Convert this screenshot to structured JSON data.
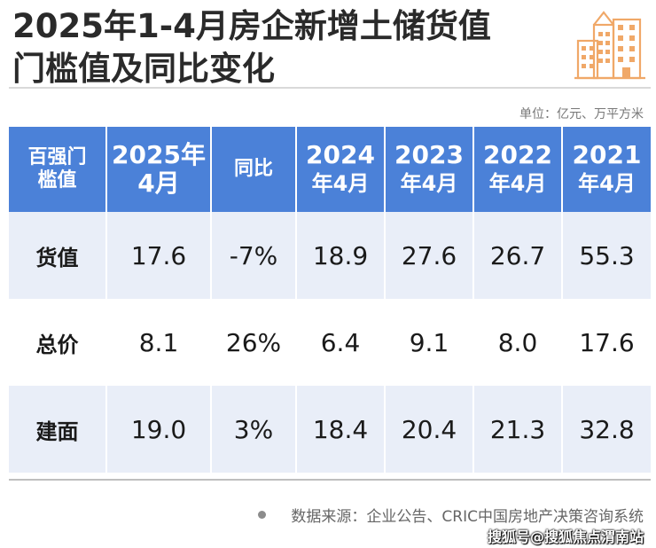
{
  "title": {
    "line1": "2025年1-4月房企新增土储货值",
    "line2": "门槛值及同比变化"
  },
  "logo": {
    "icon": "city-buildings-icon",
    "color": "#f0a868"
  },
  "unit_note": "单位：亿元、万平方米",
  "table": {
    "headers": [
      [
        "百强门",
        "槛值"
      ],
      [
        "2025年",
        "4月"
      ],
      [
        "同比"
      ],
      [
        "2024",
        "年4月"
      ],
      [
        "2023",
        "年4月"
      ],
      [
        "2022",
        "年4月"
      ],
      [
        "2021",
        "年4月"
      ]
    ],
    "rows": [
      {
        "label": "货值",
        "values": [
          "17.6",
          "-7%",
          "18.9",
          "27.6",
          "26.7",
          "55.3"
        ]
      },
      {
        "label": "总价",
        "values": [
          "8.1",
          "26%",
          "6.4",
          "9.1",
          "8.0",
          "17.6"
        ]
      },
      {
        "label": "建面",
        "values": [
          "19.0",
          "3%",
          "18.4",
          "20.4",
          "21.3",
          "32.8"
        ]
      }
    ]
  },
  "source": "数据来源：企业公告、CRIC中国房地产决策咨询系统",
  "watermark": "搜狐号@搜狐焦点渭南站",
  "colors": {
    "header_bg": "#4b81d8",
    "shade_bg": "#e9eef8"
  }
}
